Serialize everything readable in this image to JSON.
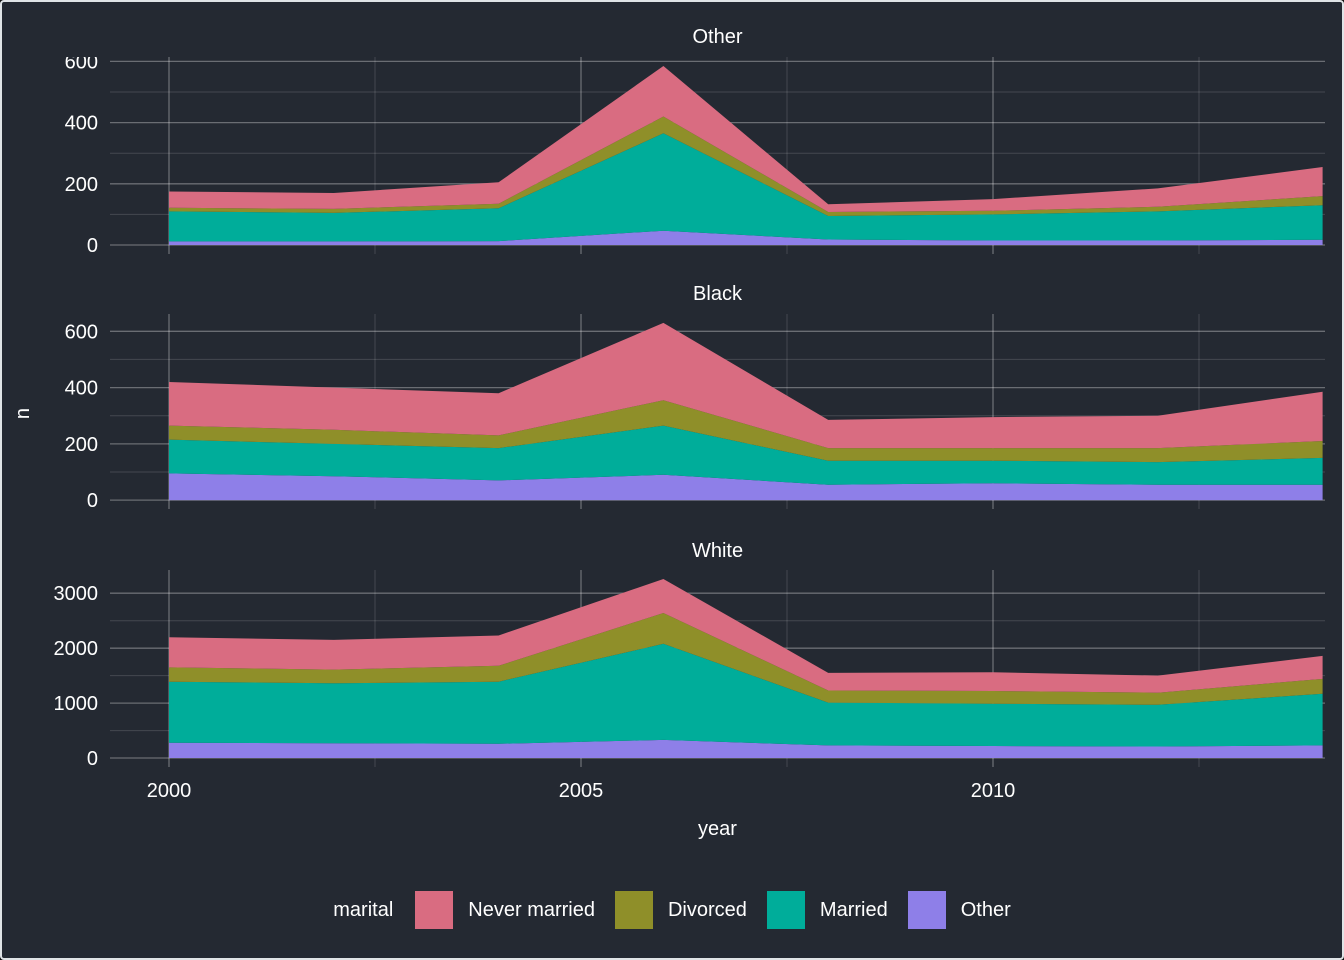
{
  "figure": {
    "background": "#242932",
    "border_color": "#dfe3e6",
    "text_color": "#ffffff",
    "grid_major_color": "rgba(255,255,255,0.32)",
    "grid_minor_color": "rgba(255,255,255,0.15)"
  },
  "chart_data": {
    "type": "area",
    "stacked": true,
    "xlabel": "year",
    "ylabel": "n",
    "x": [
      2000,
      2002,
      2004,
      2006,
      2008,
      2010,
      2012,
      2014
    ],
    "x_major_ticks": [
      2000,
      2005,
      2010
    ],
    "x_minor_ticks": [
      2002.5,
      2007.5,
      2012.5
    ],
    "legend": {
      "title": "marital",
      "position": "bottom",
      "entries": [
        {
          "label": "Never married",
          "color": "#d96c81"
        },
        {
          "label": "Divorced",
          "color": "#8f8f29"
        },
        {
          "label": "Married",
          "color": "#00ad9a"
        },
        {
          "label": "Other",
          "color": "#8e7fe8"
        }
      ]
    },
    "stack_order_bottom_to_top": [
      "Other",
      "Married",
      "Divorced",
      "Never married"
    ],
    "facets": [
      {
        "label": "Other",
        "y_major_ticks": [
          0,
          200,
          400,
          600
        ],
        "y_minor_ticks": [
          100,
          300,
          500
        ],
        "series": [
          {
            "name": "Never married",
            "values": [
              53,
              52,
              70,
              165,
              25,
              38,
              60,
              95
            ]
          },
          {
            "name": "Divorced",
            "values": [
              12,
              13,
              15,
              55,
              13,
              12,
              15,
              30
            ]
          },
          {
            "name": "Married",
            "values": [
              98,
              93,
              107,
              318,
              77,
              85,
              95,
              113
            ]
          },
          {
            "name": "Other",
            "values": [
              12,
              12,
              13,
              47,
              18,
              15,
              15,
              17
            ]
          }
        ]
      },
      {
        "label": "Black",
        "y_major_ticks": [
          0,
          200,
          400,
          600
        ],
        "y_minor_ticks": [
          100,
          300,
          500
        ],
        "series": [
          {
            "name": "Never married",
            "values": [
              155,
              150,
              150,
              275,
              100,
              110,
              115,
              175
            ]
          },
          {
            "name": "Divorced",
            "values": [
              50,
              50,
              45,
              90,
              45,
              45,
              50,
              60
            ]
          },
          {
            "name": "Married",
            "values": [
              120,
              115,
              115,
              175,
              85,
              80,
              80,
              95
            ]
          },
          {
            "name": "Other",
            "values": [
              95,
              85,
              70,
              90,
              55,
              60,
              55,
              55
            ]
          }
        ]
      },
      {
        "label": "White",
        "y_major_ticks": [
          0,
          1000,
          2000,
          3000
        ],
        "y_minor_ticks": [
          500,
          1500,
          2500
        ],
        "series": [
          {
            "name": "Never married",
            "values": [
              550,
              540,
              550,
              620,
              320,
              340,
              310,
              420
            ]
          },
          {
            "name": "Divorced",
            "values": [
              260,
              250,
              290,
              560,
              220,
              230,
              220,
              270
            ]
          },
          {
            "name": "Married",
            "values": [
              1110,
              1090,
              1130,
              1750,
              780,
              770,
              760,
              940
            ]
          },
          {
            "name": "Other",
            "values": [
              280,
              270,
              260,
              330,
              230,
              220,
              210,
              230
            ]
          }
        ]
      }
    ]
  }
}
